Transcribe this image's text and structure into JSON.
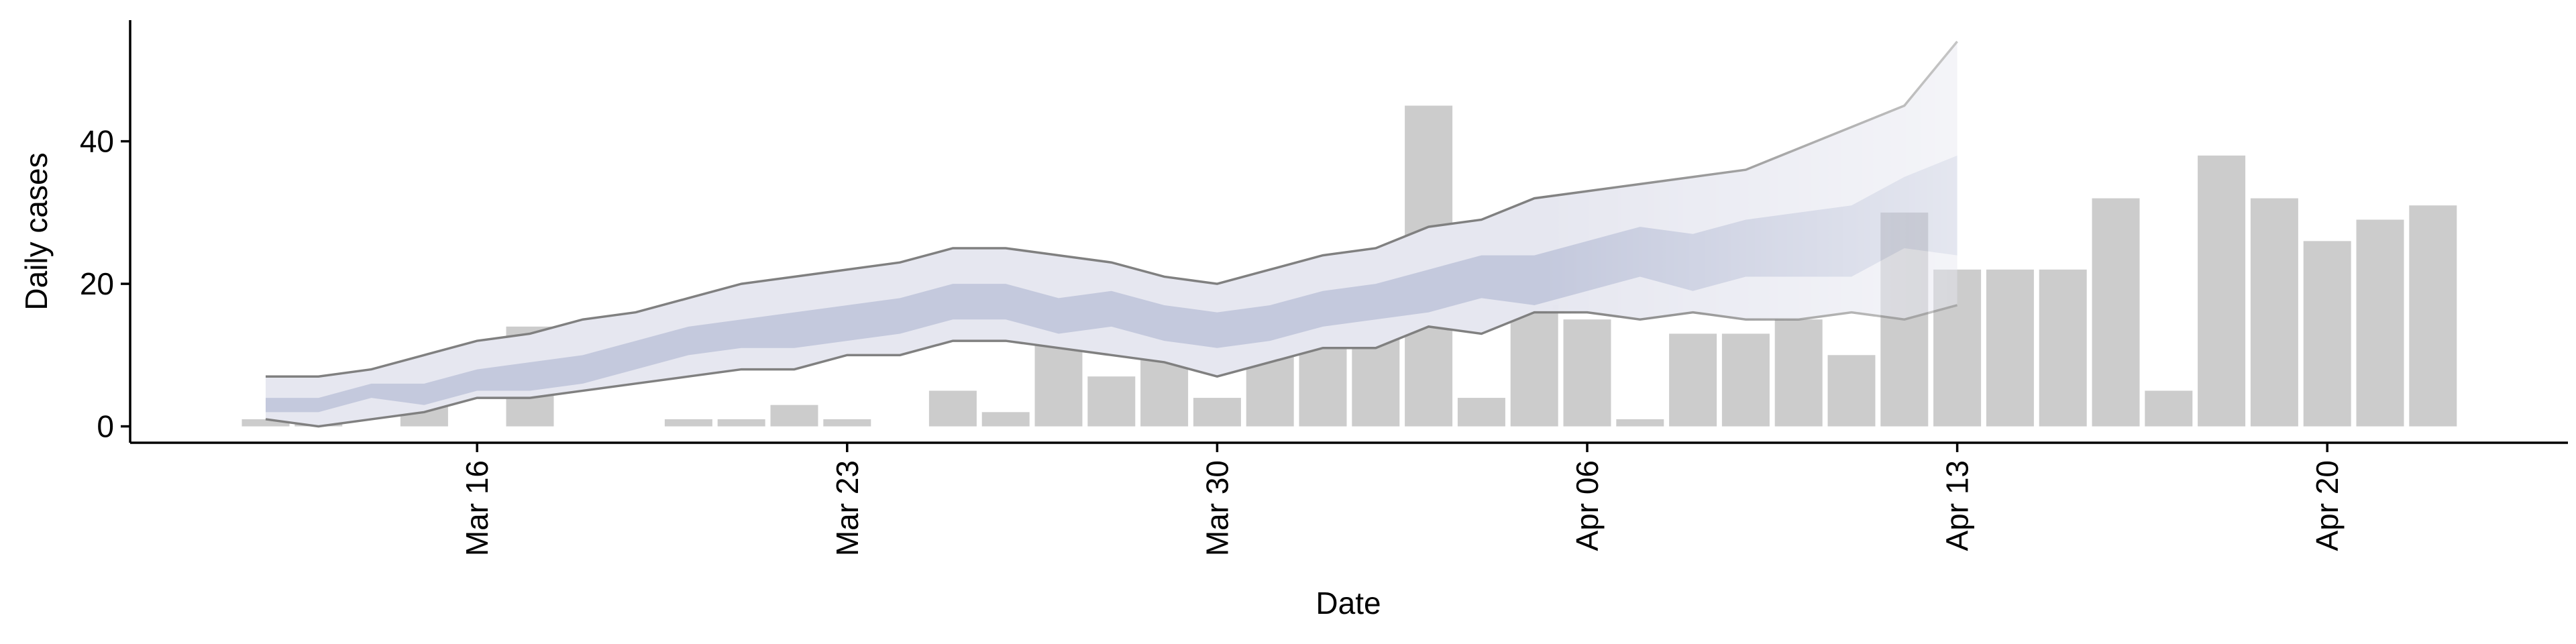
{
  "chart_data": {
    "type": "bar",
    "xlabel": "Date",
    "ylabel": "Daily cases",
    "categories": [
      null,
      null,
      null,
      null,
      "Mar 16",
      null,
      null,
      null,
      null,
      null,
      null,
      "Mar 23",
      null,
      null,
      null,
      null,
      null,
      null,
      "Mar 30",
      null,
      null,
      null,
      null,
      null,
      null,
      "Apr 06",
      null,
      null,
      null,
      null,
      null,
      null,
      "Apr 13",
      null,
      null,
      null,
      null,
      null,
      null,
      "Apr 20",
      null,
      null
    ],
    "ylim": [
      -2.3,
      57
    ],
    "yticks": [
      0,
      20,
      40
    ],
    "series": [
      {
        "type": "bar",
        "color": "#cccccc",
        "values": [
          1,
          4,
          0,
          3,
          0,
          14,
          0,
          0,
          1,
          1,
          3,
          1,
          0,
          5,
          2,
          14,
          7,
          10,
          4,
          20,
          22,
          20,
          45,
          4,
          17,
          15,
          1,
          13,
          13,
          15,
          10,
          30,
          22,
          22,
          22,
          32,
          5,
          38,
          32,
          26,
          29,
          31
        ]
      },
      {
        "type": "interval",
        "color": "#808080",
        "fill": "#e6e7f0",
        "upper": [
          7,
          7,
          8,
          10,
          12,
          13,
          15,
          16,
          18,
          20,
          21,
          22,
          23,
          25,
          25,
          24,
          23,
          21,
          20,
          22,
          24,
          25,
          28,
          29,
          32,
          33,
          34,
          35,
          36,
          39,
          42,
          45,
          54,
          null,
          null,
          null,
          null,
          null,
          null,
          null,
          null,
          null
        ],
        "lower": [
          1,
          0,
          1,
          2,
          4,
          4,
          5,
          6,
          7,
          8,
          8,
          10,
          10,
          12,
          12,
          11,
          10,
          9,
          7,
          9,
          11,
          11,
          14,
          13,
          16,
          16,
          15,
          16,
          15,
          15,
          16,
          15,
          17,
          null,
          null,
          null,
          null,
          null,
          null,
          null,
          null,
          null
        ]
      },
      {
        "type": "band",
        "fill": "#c4c9dd",
        "upper": [
          4,
          4,
          6,
          6,
          8,
          9,
          10,
          12,
          14,
          15,
          16,
          17,
          18,
          20,
          20,
          18,
          19,
          17,
          16,
          17,
          19,
          20,
          22,
          24,
          24,
          26,
          28,
          27,
          29,
          30,
          31,
          35,
          38,
          null,
          null,
          null,
          null,
          null,
          null,
          null,
          null,
          null
        ],
        "lower": [
          2,
          2,
          4,
          3,
          5,
          5,
          6,
          8,
          10,
          11,
          11,
          12,
          13,
          15,
          15,
          13,
          14,
          12,
          11,
          12,
          14,
          15,
          16,
          18,
          17,
          19,
          21,
          19,
          21,
          21,
          21,
          25,
          24,
          null,
          null,
          null,
          null,
          null,
          null,
          null,
          null,
          null
        ]
      }
    ]
  }
}
